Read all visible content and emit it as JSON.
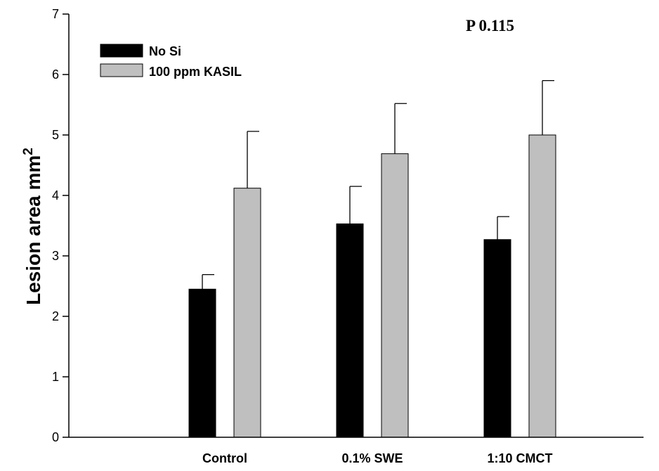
{
  "chart_data": {
    "type": "bar",
    "categories": [
      "Control",
      "0.1% SWE",
      "1:10 CMCT"
    ],
    "series": [
      {
        "name": "No Si",
        "color": "#000000",
        "values": [
          2.45,
          3.53,
          3.27
        ],
        "errors": [
          0.24,
          0.62,
          0.38
        ]
      },
      {
        "name": "100 ppm KASIL",
        "color": "#bfbfbf",
        "values": [
          4.12,
          4.69,
          5.0
        ],
        "errors": [
          0.94,
          0.83,
          0.9
        ]
      }
    ],
    "ylabel_main": "Lesion area mm",
    "ylabel_superscript": "2",
    "ylim": [
      0,
      7
    ],
    "yticks": [
      "0",
      "1",
      "2",
      "3",
      "4",
      "5",
      "6",
      "7"
    ],
    "annotation": "P 0.115",
    "legend_position": "top-left",
    "grid": false
  }
}
